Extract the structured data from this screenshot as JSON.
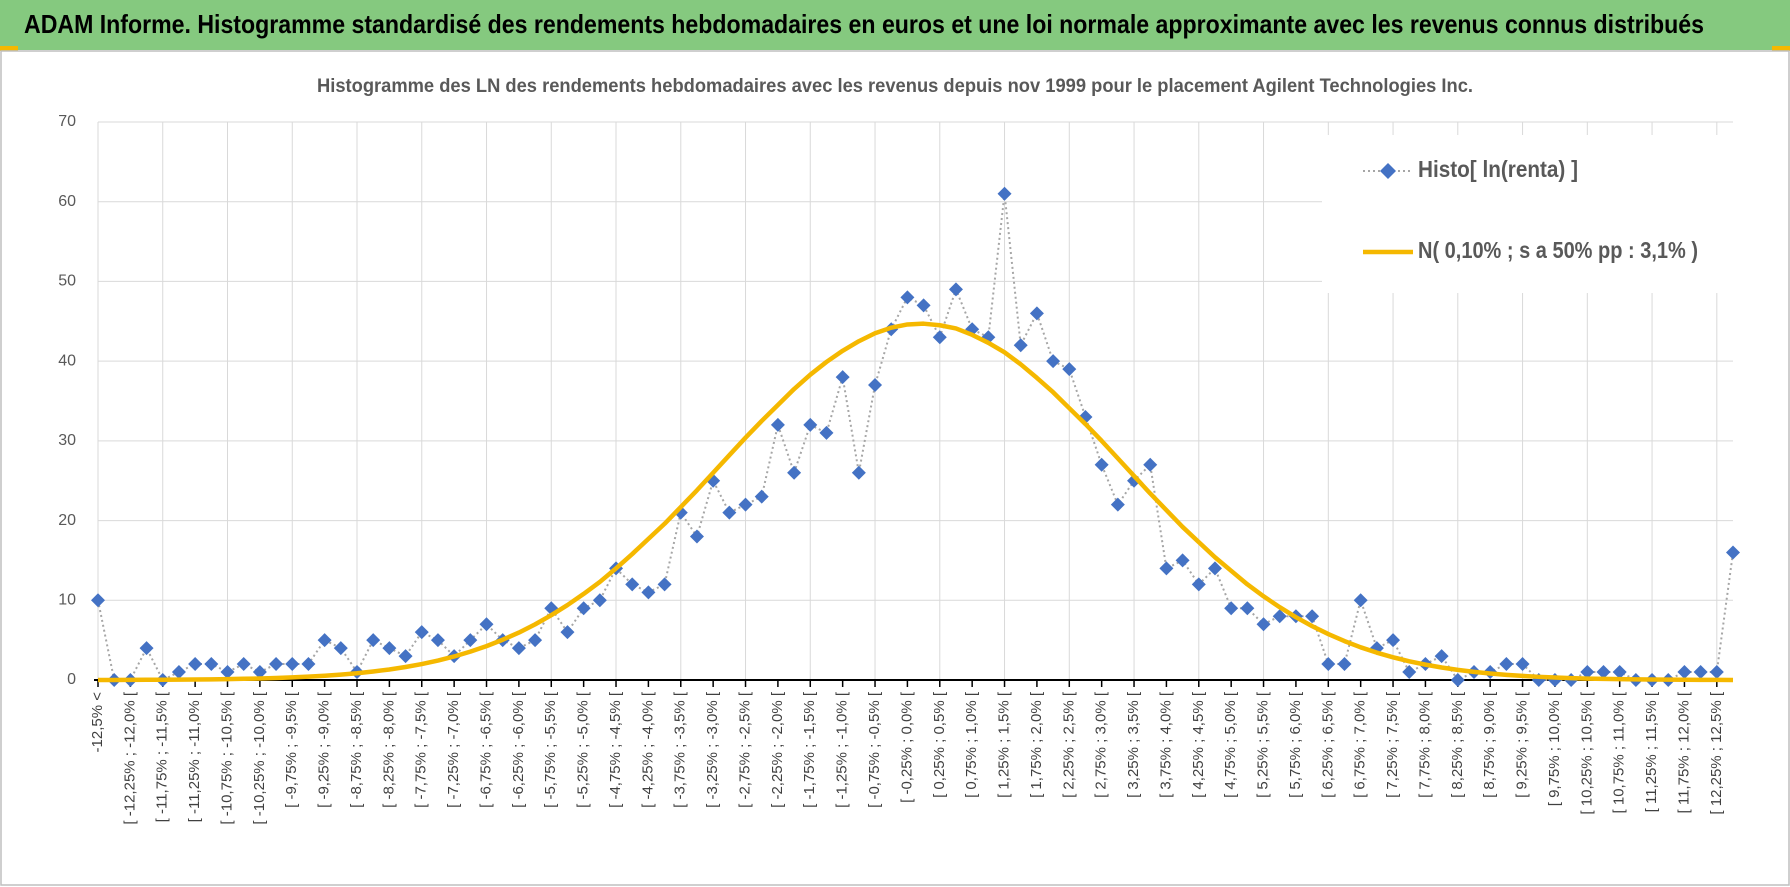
{
  "chart_data": {
    "type": "line",
    "title": "ADAM Informe. Histogramme standardisé des rendements hebdomadaires en euros et une loi normale approximante avec les revenus connus distribués",
    "subtitle": "Histogramme des LN des rendements hebdomadaires avec les revenus depuis nov 1999 pour le placement Agilent Technologies Inc.",
    "categories": [
      "-12,5% <",
      null,
      "[ -12,25% ; -12,0% [",
      null,
      "[ -11,75% ; -11,5% [",
      null,
      "[ -11,25% ; -11,0% [",
      null,
      "[ -10,75% ; -10,5% [",
      null,
      "[ -10,25% ; -10,0% [",
      null,
      "[ -9,75% ; -9,5% [",
      null,
      "[ -9,25% ; -9,0% [",
      null,
      "[ -8,75% ; -8,5% [",
      null,
      "[ -8,25% ; -8,0% [",
      null,
      "[ -7,75% ; -7,5% [",
      null,
      "[ -7,25% ; -7,0% [",
      null,
      "[ -6,75% ; -6,5% [",
      null,
      "[ -6,25% ; -6,0% [",
      null,
      "[ -5,75% ; -5,5% [",
      null,
      "[ -5,25% ; -5,0% [",
      null,
      "[ -4,75% ; -4,5% [",
      null,
      "[ -4,25% ; -4,0% [",
      null,
      "[ -3,75% ; -3,5% [",
      null,
      "[ -3,25% ; -3,0% [",
      null,
      "[ -2,75% ; -2,5% [",
      null,
      "[ -2,25% ; -2,0% [",
      null,
      "[ -1,75% ; -1,5% [",
      null,
      "[ -1,25% ; -1,0% [",
      null,
      "[ -0,75% ; -0,5% [",
      null,
      "[ -0,25% ; 0,0% [",
      null,
      "[ 0,25% ; 0,5% [",
      null,
      "[ 0,75% ; 1,0% [",
      null,
      "[ 1,25% ; 1,5% [",
      null,
      "[ 1,75% ; 2,0% [",
      null,
      "[ 2,25% ; 2,5% [",
      null,
      "[ 2,75% ; 3,0% [",
      null,
      "[ 3,25% ; 3,5% [",
      null,
      "[ 3,75% ; 4,0% [",
      null,
      "[ 4,25% ; 4,5% [",
      null,
      "[ 4,75% ; 5,0% [",
      null,
      "[ 5,25% ; 5,5% [",
      null,
      "[ 5,75% ; 6,0% [",
      null,
      "[ 6,25% ; 6,5% [",
      null,
      "[ 6,75% ; 7,0% [",
      null,
      "[ 7,25% ; 7,5% [",
      null,
      "[ 7,75% ; 8,0% [",
      null,
      "[ 8,25% ; 8,5% [",
      null,
      "[ 8,75% ; 9,0% [",
      null,
      "[ 9,25% ; 9,5% [",
      null,
      "[ 9,75% ; 10,0% [",
      null,
      "[ 10,25% ; 10,5% [",
      null,
      "[ 10,75% ; 11,0% [",
      null,
      "[ 11,25% ; 11,5% [",
      null,
      "[ 11,75% ; 12,0% [",
      null,
      "[ 12,25% ; 12,5% [",
      null
    ],
    "series": [
      {
        "name": "Histo[ ln(renta) ]",
        "color": "#4472c4",
        "marker": "diamond",
        "linestyle": "dotted",
        "values": [
          10,
          0,
          0,
          4,
          0,
          1,
          2,
          2,
          1,
          2,
          1,
          2,
          2,
          2,
          5,
          4,
          1,
          5,
          4,
          3,
          6,
          5,
          3,
          5,
          7,
          5,
          4,
          5,
          9,
          6,
          9,
          10,
          14,
          12,
          11,
          12,
          21,
          18,
          25,
          21,
          22,
          23,
          32,
          26,
          32,
          31,
          38,
          26,
          37,
          44,
          48,
          47,
          43,
          49,
          44,
          43,
          61,
          42,
          46,
          40,
          39,
          33,
          27,
          22,
          25,
          27,
          14,
          15,
          12,
          14,
          9,
          9,
          7,
          8,
          8,
          8,
          2,
          2,
          10,
          4,
          5,
          1,
          2,
          3,
          0,
          1,
          1,
          2,
          2,
          0,
          0,
          0,
          1,
          1,
          1,
          0,
          0,
          0,
          1,
          1,
          1,
          16
        ]
      },
      {
        "name": "N( 0,10% ; s a 50% pp : 3,1% )",
        "color": "#f5b800",
        "marker": "none",
        "linestyle": "solid",
        "values": [
          0,
          0,
          0.02,
          0.03,
          0.03,
          0.05,
          0.06,
          0.08,
          0.11,
          0.15,
          0.19,
          0.25,
          0.33,
          0.42,
          0.53,
          0.68,
          0.85,
          1.07,
          1.32,
          1.63,
          2.0,
          2.44,
          2.95,
          3.56,
          4.25,
          5.05,
          5.95,
          6.98,
          8.13,
          9.4,
          10.8,
          12.3,
          14.0,
          15.8,
          17.7,
          19.6,
          21.7,
          23.8,
          26.0,
          28.2,
          30.4,
          32.5,
          34.5,
          36.5,
          38.3,
          39.9,
          41.3,
          42.5,
          43.5,
          44.2,
          44.6,
          44.7,
          44.5,
          44.1,
          43.3,
          42.3,
          41.1,
          39.6,
          37.9,
          36.1,
          34.1,
          32.1,
          30.0,
          27.8,
          25.6,
          23.4,
          21.3,
          19.2,
          17.3,
          15.4,
          13.7,
          12.0,
          10.5,
          9.13,
          7.88,
          6.76,
          5.76,
          4.88,
          4.1,
          3.43,
          2.85,
          2.35,
          1.93,
          1.57,
          1.27,
          1.02,
          0.81,
          0.65,
          0.51,
          0.4,
          0.31,
          0.24,
          0.18,
          0.14,
          0.11,
          0.08,
          0.06,
          0.04,
          0.03,
          0.02,
          0.02,
          0
        ]
      }
    ],
    "ylim": [
      0,
      70
    ],
    "yticks": [
      0,
      10,
      20,
      30,
      40,
      50,
      60,
      70
    ],
    "grid": true,
    "legend": "upper right"
  }
}
